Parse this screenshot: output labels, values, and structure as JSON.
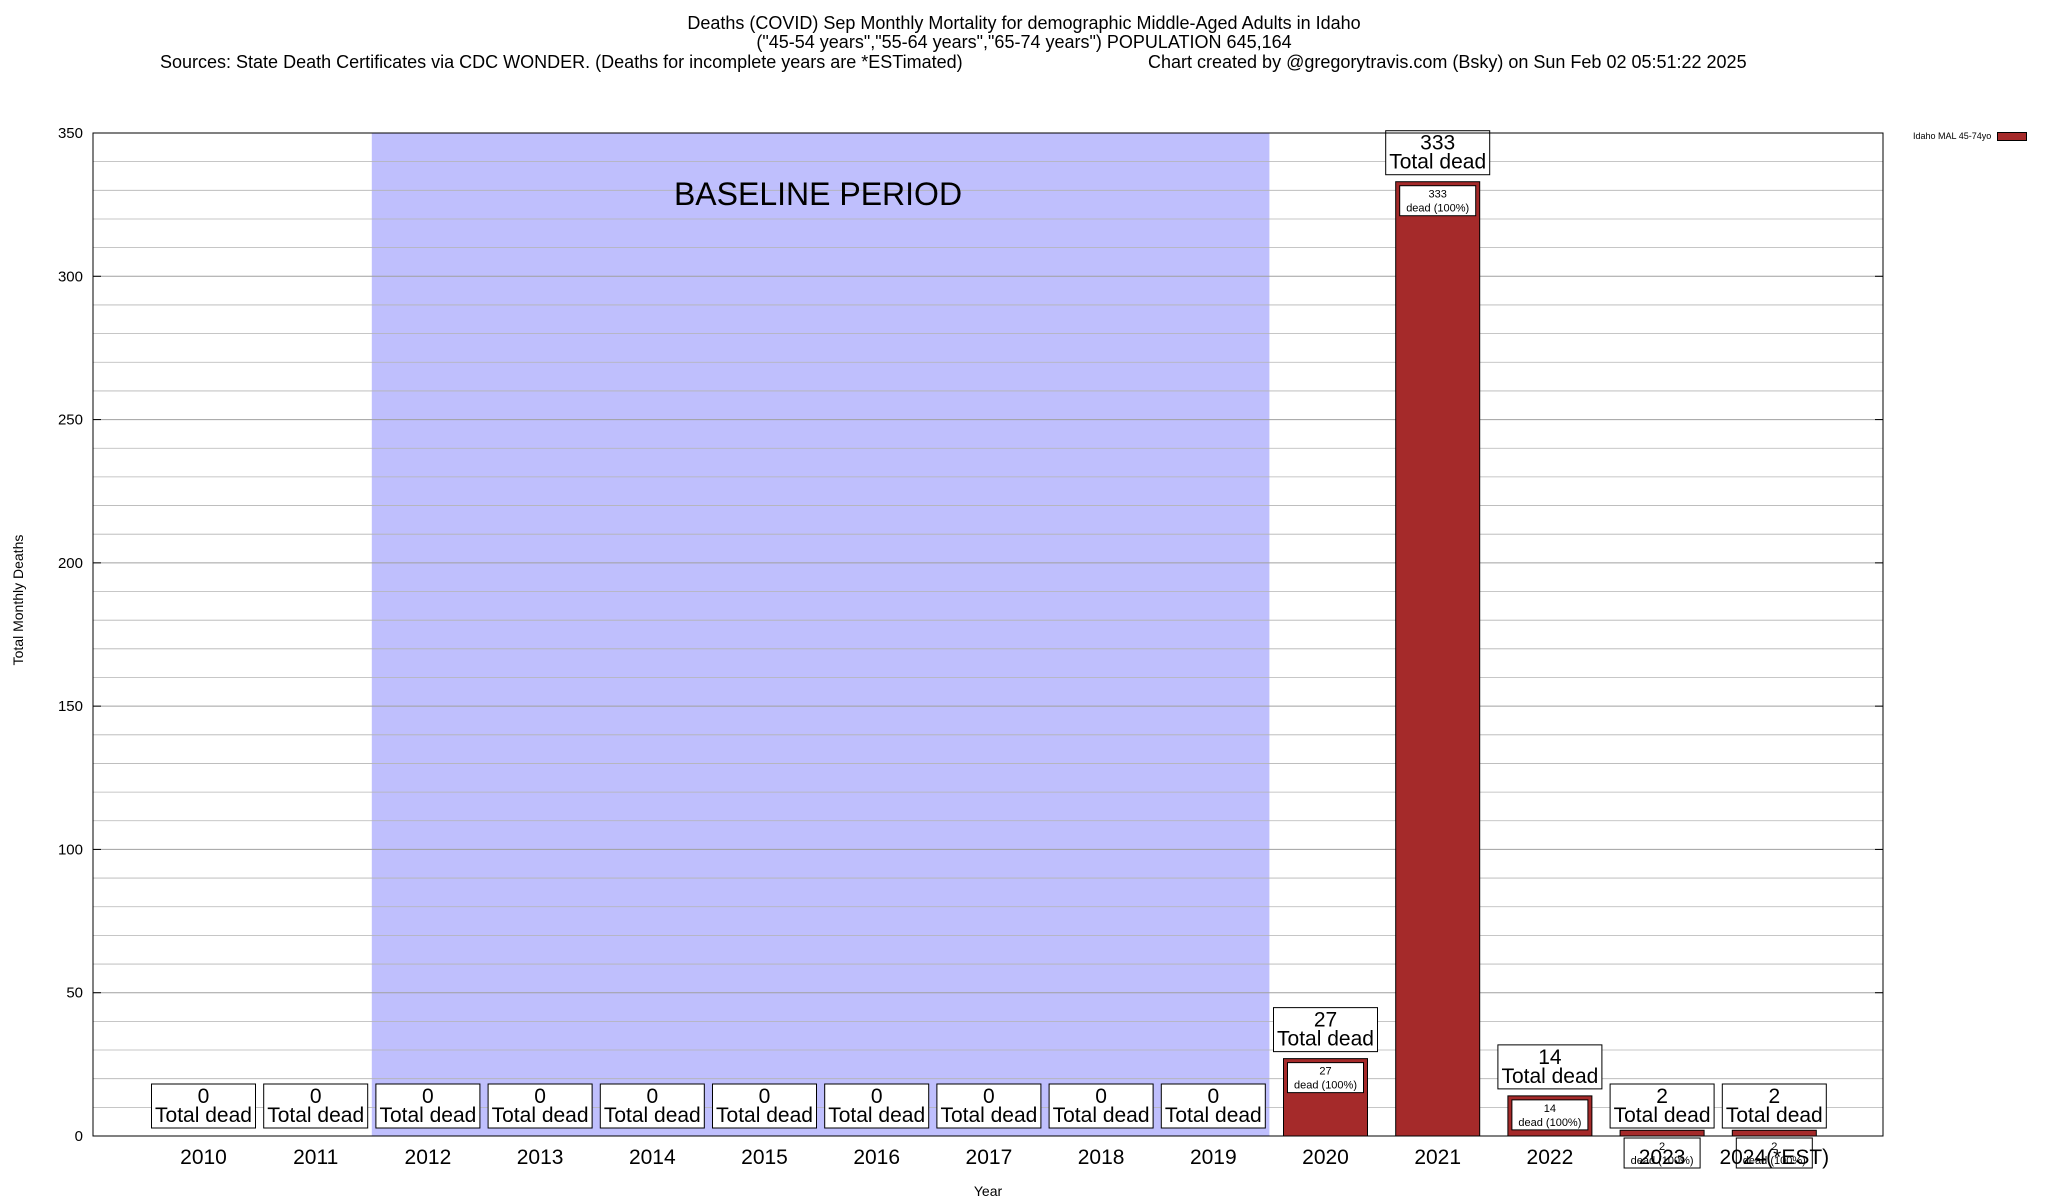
{
  "title": {
    "line1": "Deaths (COVID) Sep Monthly Mortality for demographic Middle-Aged Adults in Idaho",
    "line2": "(\"45-54 years\",\"55-64 years\",\"65-74 years\") POPULATION 645,164",
    "sources": "Sources: State Death Certificates via CDC WONDER. (Deaths for incomplete years are *ESTimated)",
    "credit": "Chart created by @gregorytravis.com (Bsky) on Sun Feb 02 05:51:22 2025"
  },
  "chart_data": {
    "type": "bar",
    "categories": [
      "2010",
      "2011",
      "2012",
      "2013",
      "2014",
      "2015",
      "2016",
      "2017",
      "2018",
      "2019",
      "2020",
      "2021",
      "2022",
      "2023",
      "2024(*EST)"
    ],
    "series": [
      {
        "name": "Idaho MAL 45-74yo",
        "values": [
          0,
          0,
          0,
          0,
          0,
          0,
          0,
          0,
          0,
          0,
          27,
          333,
          14,
          2,
          2
        ],
        "color": "#a52a2a"
      }
    ],
    "total_label": "Total dead",
    "inner_label": "dead (100%)",
    "baseline": {
      "label": "BASELINE PERIOD",
      "start": "2012",
      "end": "2019",
      "color": "#bfbffd"
    },
    "ylim": [
      0,
      350
    ],
    "yticks": [
      0,
      50,
      100,
      150,
      200,
      250,
      300,
      350
    ],
    "ylabel": "Total Monthly Deaths",
    "xlabel": "Year",
    "grid": true,
    "legend_position": "top-right"
  }
}
